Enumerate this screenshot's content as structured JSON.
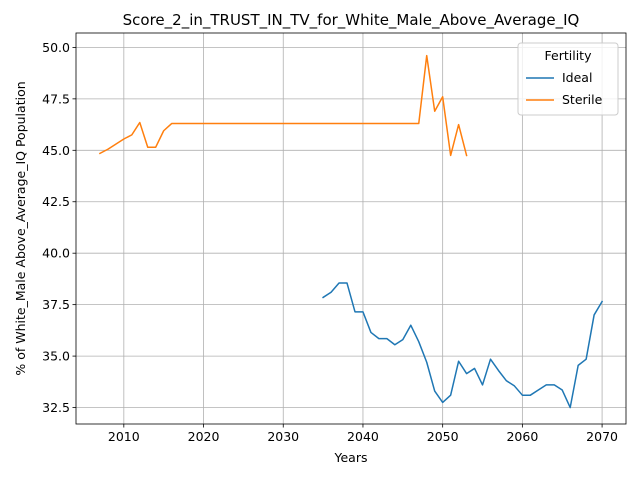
{
  "chart_data": {
    "type": "line",
    "title": "Score_2_in_TRUST_IN_TV_for_White_Male_Above_Average_IQ",
    "xlabel": "Years",
    "ylabel": "% of White_Male Above_Average_IQ Population",
    "xlim": [
      2004,
      2073
    ],
    "ylim": [
      31.7,
      50.7
    ],
    "xticks": [
      2010,
      2020,
      2030,
      2040,
      2050,
      2060,
      2070
    ],
    "yticks": [
      32.5,
      35.0,
      37.5,
      40.0,
      42.5,
      45.0,
      47.5,
      50.0
    ],
    "xtick_labels": [
      "2010",
      "2020",
      "2030",
      "2040",
      "2050",
      "2060",
      "2070"
    ],
    "ytick_labels": [
      "32.5",
      "35.0",
      "37.5",
      "40.0",
      "42.5",
      "45.0",
      "47.5",
      "50.0"
    ],
    "grid": true,
    "legend": {
      "title": "Fertility",
      "position": "upper-right"
    },
    "series": [
      {
        "name": "Ideal",
        "color": "#1f77b4",
        "x": [
          2035,
          2036,
          2037,
          2038,
          2039,
          2040,
          2041,
          2042,
          2043,
          2044,
          2045,
          2046,
          2047,
          2048,
          2049,
          2050,
          2051,
          2052,
          2053,
          2054,
          2055,
          2056,
          2057,
          2058,
          2059,
          2060,
          2061,
          2062,
          2063,
          2064,
          2065,
          2066,
          2067,
          2068,
          2069,
          2070
        ],
        "y": [
          37.85,
          38.1,
          38.55,
          38.55,
          37.15,
          37.15,
          36.15,
          35.85,
          35.85,
          35.55,
          35.8,
          36.5,
          35.7,
          34.7,
          33.3,
          32.75,
          33.1,
          34.75,
          34.15,
          34.4,
          33.6,
          34.85,
          34.3,
          33.8,
          33.55,
          33.1,
          33.1,
          33.35,
          33.6,
          33.6,
          33.35,
          32.5,
          34.55,
          34.85,
          37.0,
          37.65
        ]
      },
      {
        "name": "Sterile",
        "color": "#ff7f0e",
        "x": [
          2007,
          2008,
          2009,
          2010,
          2011,
          2012,
          2013,
          2014,
          2015,
          2016,
          2017,
          2018,
          2019,
          2020,
          2021,
          2022,
          2023,
          2024,
          2025,
          2026,
          2027,
          2028,
          2029,
          2030,
          2031,
          2032,
          2033,
          2034,
          2035,
          2036,
          2037,
          2038,
          2039,
          2040,
          2041,
          2042,
          2043,
          2044,
          2045,
          2046,
          2047,
          2048,
          2049,
          2050,
          2051,
          2052,
          2053
        ],
        "y": [
          44.85,
          45.05,
          45.3,
          45.55,
          45.75,
          46.35,
          45.15,
          45.15,
          45.95,
          46.3,
          46.3,
          46.3,
          46.3,
          46.3,
          46.3,
          46.3,
          46.3,
          46.3,
          46.3,
          46.3,
          46.3,
          46.3,
          46.3,
          46.3,
          46.3,
          46.3,
          46.3,
          46.3,
          46.3,
          46.3,
          46.3,
          46.3,
          46.3,
          46.3,
          46.3,
          46.3,
          46.3,
          46.3,
          46.3,
          46.3,
          46.3,
          49.6,
          46.9,
          47.6,
          44.75,
          46.25,
          44.75
        ]
      }
    ]
  }
}
